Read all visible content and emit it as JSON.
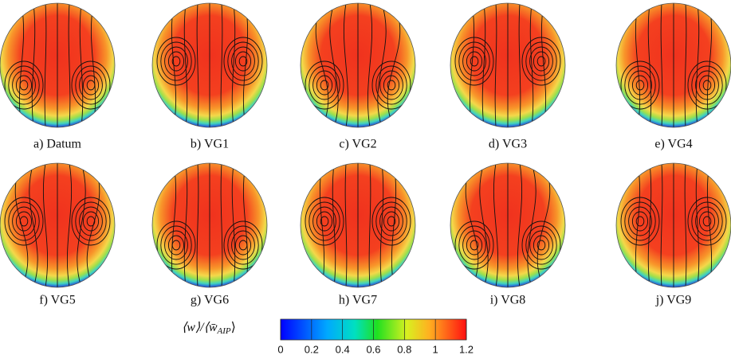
{
  "panels": [
    {
      "label": "a) Datum"
    },
    {
      "label": "b) VG1"
    },
    {
      "label": "c) VG2"
    },
    {
      "label": "d) VG3"
    },
    {
      "label": "e) VG4"
    },
    {
      "label": "f) VG5"
    },
    {
      "label": "g) VG6"
    },
    {
      "label": "h) VG7"
    },
    {
      "label": "i) VG8"
    },
    {
      "label": "j) VG9"
    }
  ],
  "colorbar": {
    "label": [
      "⟨w⟩/⟨w̄",
      "AIP",
      "⟩"
    ],
    "lim": [
      0,
      1.2
    ],
    "ticks": [
      0,
      0.2,
      0.4,
      0.6,
      0.8,
      1,
      1.2
    ]
  }
}
